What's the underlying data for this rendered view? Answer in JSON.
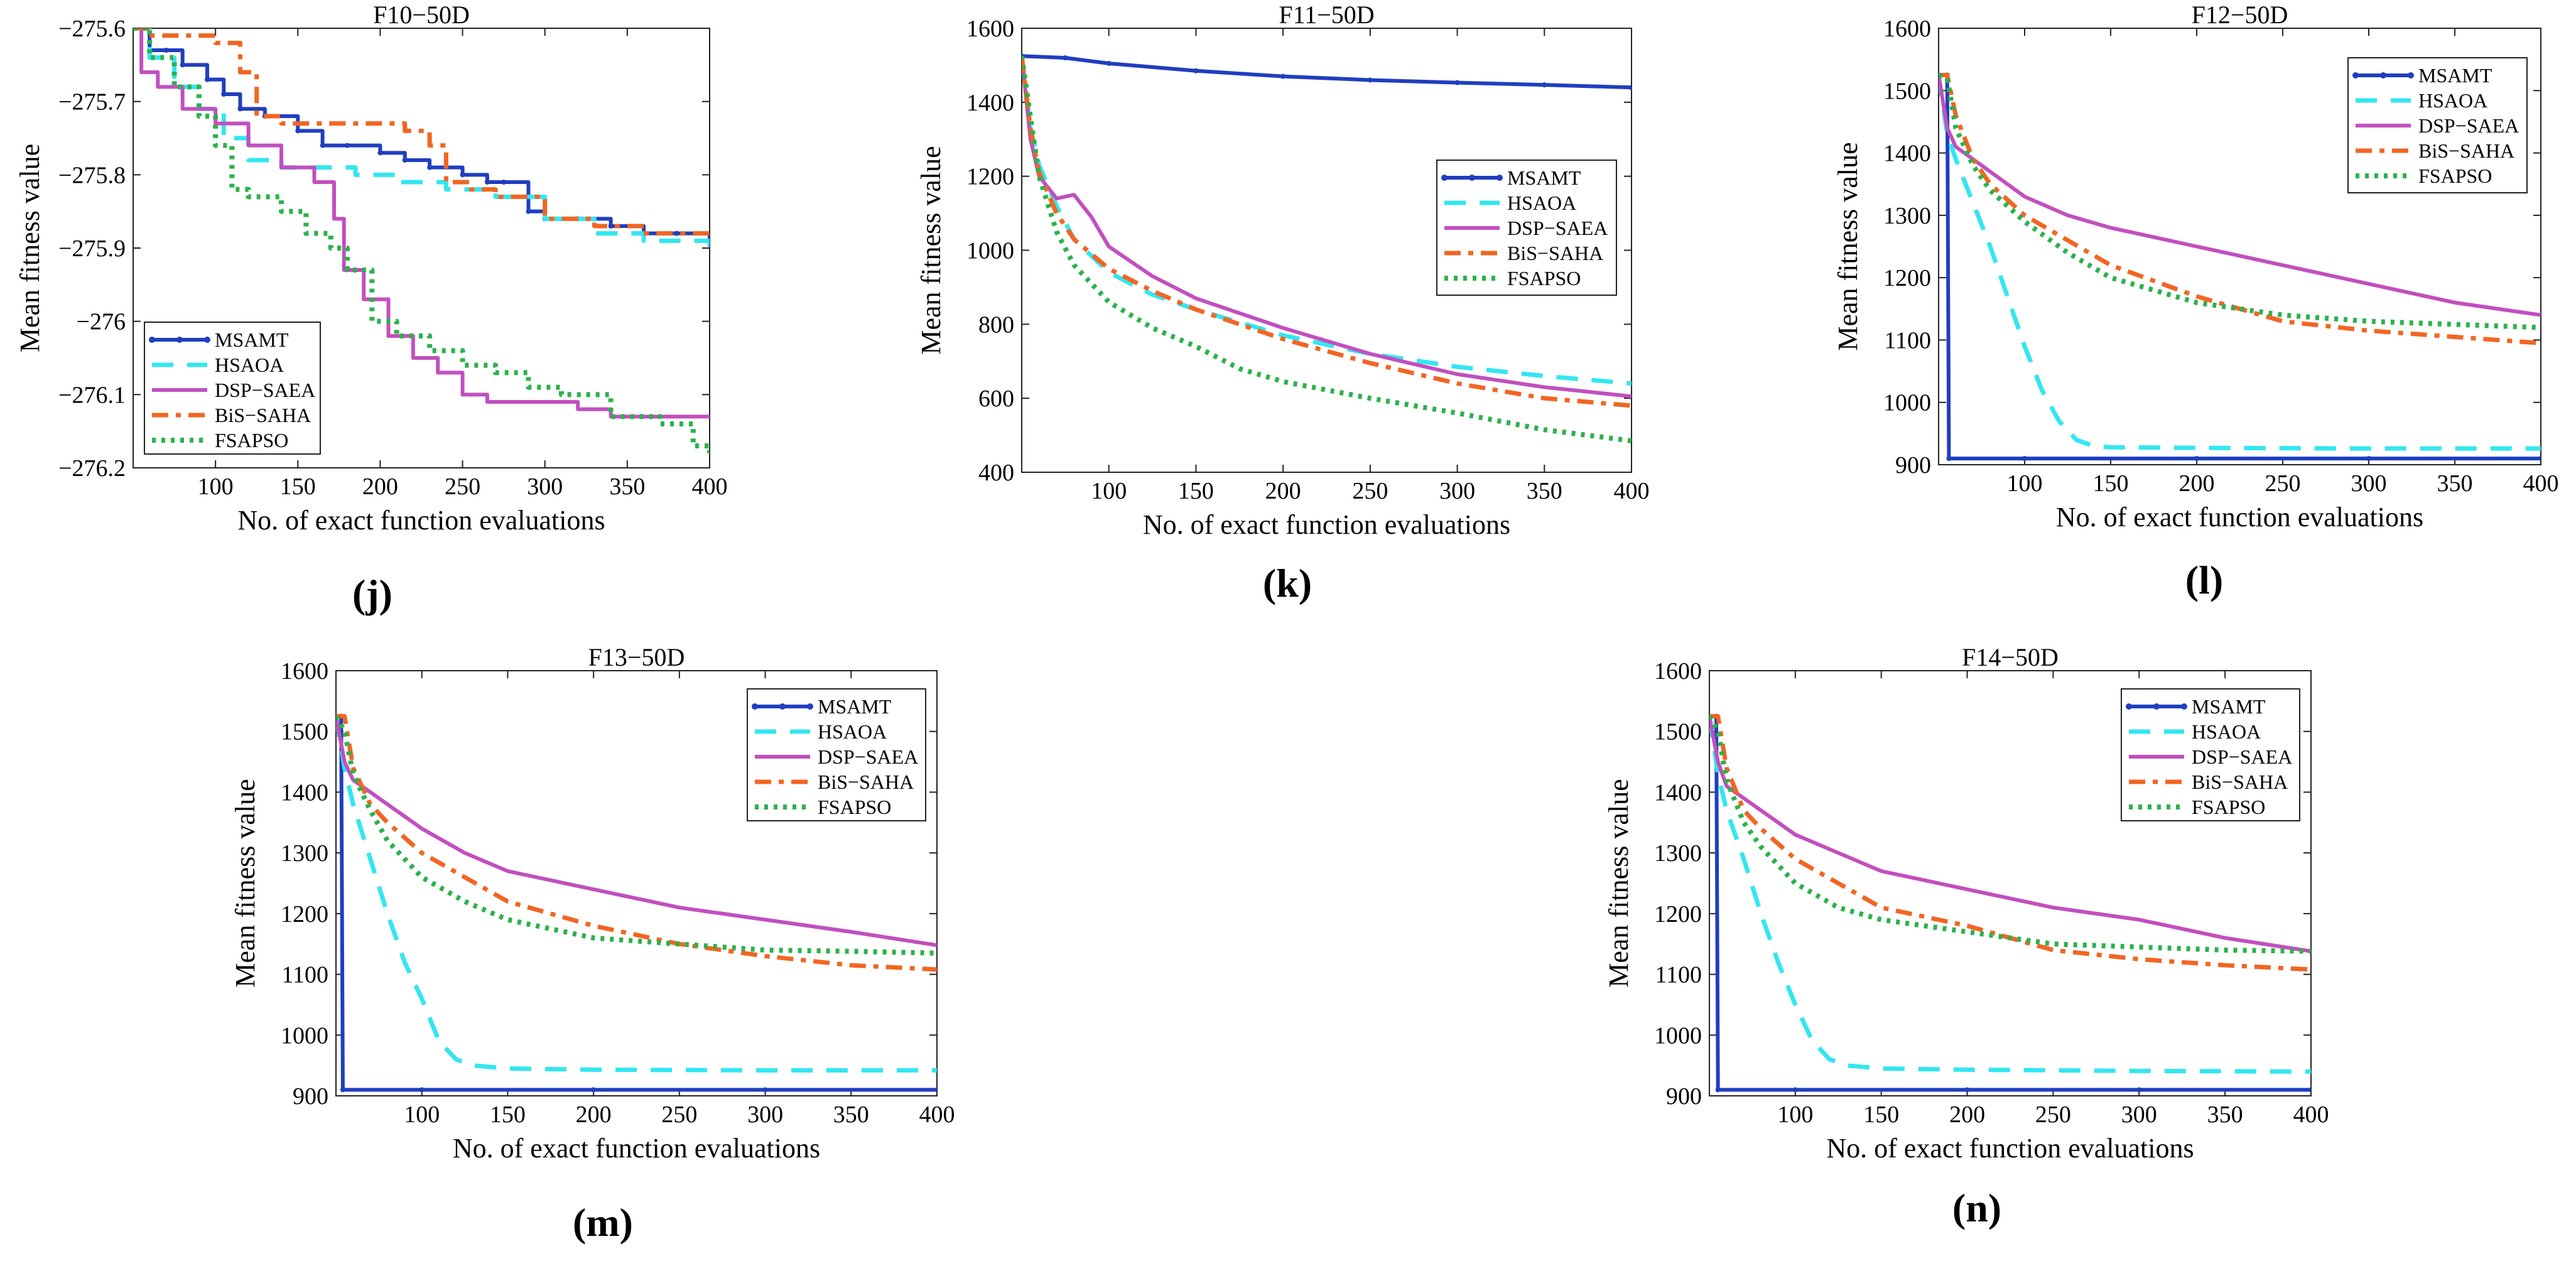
{
  "series_styles": {
    "MSAMT": {
      "color": "#1f3fbf",
      "dash": "",
      "width": 6,
      "marker": true
    },
    "HSAOA": {
      "color": "#33e6f0",
      "dash": "34,22",
      "width": 7,
      "marker": false
    },
    "DSP-SAEA": {
      "color": "#c24fbf",
      "dash": "",
      "width": 6,
      "marker": false
    },
    "BiS-SAHA": {
      "color": "#f26522",
      "dash": "26,12,8,12",
      "width": 7,
      "marker": false
    },
    "FSAPSO": {
      "color": "#2bb24c",
      "dash": "6,9",
      "width": 8,
      "marker": false
    }
  },
  "chart_data": [
    {
      "type": "line",
      "panel": "(j)",
      "title": "F10−50D",
      "xlabel": "No. of exact function evaluations",
      "ylabel": "Mean fitness value",
      "xlim": [
        50,
        400
      ],
      "ylim": [
        -276.2,
        -275.6
      ],
      "xticks": [
        100,
        150,
        200,
        250,
        300,
        350,
        400
      ],
      "yticks": [
        -275.6,
        -275.7,
        -275.8,
        -275.9,
        -276,
        -276.1,
        -276.2
      ],
      "ytick_labels": [
        "−275.6",
        "−275.7",
        "−275.8",
        "−275.9",
        "−276",
        "−276.1",
        "−276.2"
      ],
      "legend": "bottom-left",
      "series": [
        {
          "name": "MSAMT",
          "step": true,
          "x": [
            50,
            60,
            70,
            80,
            95,
            105,
            115,
            130,
            150,
            165,
            180,
            200,
            215,
            230,
            250,
            265,
            275,
            290,
            300,
            320,
            340,
            360,
            380,
            400
          ],
          "y": [
            -275.6,
            -275.63,
            -275.63,
            -275.65,
            -275.67,
            -275.69,
            -275.71,
            -275.72,
            -275.74,
            -275.76,
            -275.76,
            -275.77,
            -275.78,
            -275.79,
            -275.8,
            -275.81,
            -275.81,
            -275.85,
            -275.86,
            -275.86,
            -275.87,
            -275.88,
            -275.88,
            -275.89
          ]
        },
        {
          "name": "HSAOA",
          "step": true,
          "x": [
            50,
            60,
            75,
            90,
            105,
            120,
            140,
            160,
            185,
            210,
            240,
            270,
            300,
            330,
            360,
            390,
            400
          ],
          "y": [
            -275.6,
            -275.64,
            -275.68,
            -275.71,
            -275.75,
            -275.78,
            -275.79,
            -275.79,
            -275.8,
            -275.81,
            -275.82,
            -275.83,
            -275.86,
            -275.88,
            -275.89,
            -275.89,
            -275.91
          ]
        },
        {
          "name": "DSP-SAEA",
          "step": true,
          "x": [
            50,
            55,
            65,
            80,
            100,
            120,
            140,
            160,
            172,
            178,
            190,
            205,
            220,
            235,
            250,
            265,
            290,
            320,
            340,
            370,
            400
          ],
          "y": [
            -275.6,
            -275.66,
            -275.68,
            -275.71,
            -275.73,
            -275.76,
            -275.79,
            -275.81,
            -275.86,
            -275.93,
            -275.97,
            -276.02,
            -276.05,
            -276.07,
            -276.1,
            -276.11,
            -276.11,
            -276.12,
            -276.13,
            -276.13,
            -276.13
          ]
        },
        {
          "name": "BiS-SAHA",
          "step": true,
          "x": [
            50,
            60,
            80,
            100,
            115,
            125,
            140,
            180,
            200,
            215,
            230,
            240,
            255,
            270,
            300,
            330,
            360,
            400
          ],
          "y": [
            -275.6,
            -275.61,
            -275.61,
            -275.62,
            -275.66,
            -275.72,
            -275.73,
            -275.73,
            -275.73,
            -275.74,
            -275.76,
            -275.81,
            -275.82,
            -275.83,
            -275.86,
            -275.87,
            -275.88,
            -275.88
          ]
        },
        {
          "name": "FSAPSO",
          "step": true,
          "x": [
            50,
            60,
            75,
            90,
            100,
            110,
            120,
            140,
            155,
            170,
            180,
            195,
            210,
            230,
            250,
            270,
            290,
            310,
            340,
            370,
            390,
            400
          ],
          "y": [
            -275.6,
            -275.64,
            -275.68,
            -275.72,
            -275.76,
            -275.82,
            -275.83,
            -275.85,
            -275.88,
            -275.9,
            -275.93,
            -276.0,
            -276.02,
            -276.04,
            -276.06,
            -276.07,
            -276.09,
            -276.1,
            -276.13,
            -276.14,
            -276.17,
            -276.18
          ]
        }
      ]
    },
    {
      "type": "line",
      "panel": "(k)",
      "title": "F11−50D",
      "xlabel": "No. of exact function evaluations",
      "ylabel": "Mean fitness value",
      "xlim": [
        50,
        400
      ],
      "ylim": [
        400,
        1600
      ],
      "xticks": [
        100,
        150,
        200,
        250,
        300,
        350,
        400
      ],
      "yticks": [
        400,
        600,
        800,
        1000,
        1200,
        1400,
        1600
      ],
      "legend": "right-middle",
      "series": [
        {
          "name": "MSAMT",
          "x": [
            50,
            75,
            100,
            150,
            200,
            250,
            300,
            350,
            400
          ],
          "y": [
            1525,
            1520,
            1505,
            1485,
            1470,
            1460,
            1453,
            1447,
            1440
          ]
        },
        {
          "name": "HSAOA",
          "x": [
            50,
            55,
            60,
            70,
            80,
            100,
            125,
            150,
            200,
            250,
            300,
            350,
            400
          ],
          "y": [
            1525,
            1330,
            1230,
            1120,
            1030,
            940,
            880,
            840,
            770,
            720,
            685,
            660,
            640
          ]
        },
        {
          "name": "DSP-SAEA",
          "x": [
            50,
            55,
            60,
            70,
            80,
            90,
            100,
            125,
            150,
            200,
            250,
            300,
            350,
            400
          ],
          "y": [
            1525,
            1300,
            1200,
            1140,
            1150,
            1090,
            1010,
            930,
            870,
            790,
            720,
            665,
            630,
            605
          ]
        },
        {
          "name": "BiS-SAHA",
          "x": [
            50,
            55,
            60,
            70,
            80,
            100,
            125,
            150,
            200,
            250,
            300,
            350,
            400
          ],
          "y": [
            1525,
            1330,
            1210,
            1100,
            1030,
            950,
            890,
            840,
            760,
            695,
            640,
            600,
            580
          ]
        },
        {
          "name": "FSAPSO",
          "x": [
            50,
            55,
            60,
            70,
            80,
            100,
            125,
            150,
            175,
            200,
            250,
            300,
            350,
            400
          ],
          "y": [
            1525,
            1360,
            1200,
            1050,
            960,
            860,
            790,
            740,
            680,
            645,
            600,
            560,
            515,
            485
          ]
        }
      ]
    },
    {
      "type": "line",
      "panel": "(l)",
      "title": "F12−50D",
      "xlabel": "No. of exact function evaluations",
      "ylabel": "Mean fitness value",
      "xlim": [
        50,
        400
      ],
      "ylim": [
        900,
        1600
      ],
      "xticks": [
        100,
        150,
        200,
        250,
        300,
        350,
        400
      ],
      "yticks": [
        900,
        1000,
        1100,
        1200,
        1300,
        1400,
        1500,
        1600
      ],
      "legend": "top-right",
      "series": [
        {
          "name": "MSAMT",
          "x": [
            50,
            55,
            56,
            100,
            200,
            300,
            400
          ],
          "y": [
            1525,
            1525,
            910,
            910,
            910,
            910,
            910
          ]
        },
        {
          "name": "HSAOA",
          "x": [
            50,
            55,
            60,
            70,
            80,
            90,
            100,
            110,
            120,
            130,
            140,
            150,
            200,
            300,
            400
          ],
          "y": [
            1525,
            1430,
            1390,
            1320,
            1250,
            1170,
            1090,
            1020,
            970,
            940,
            930,
            928,
            927,
            926,
            926
          ]
        },
        {
          "name": "DSP-SAEA",
          "x": [
            50,
            55,
            60,
            70,
            80,
            100,
            125,
            150,
            200,
            250,
            300,
            350,
            400
          ],
          "y": [
            1525,
            1440,
            1410,
            1390,
            1370,
            1330,
            1300,
            1280,
            1250,
            1220,
            1190,
            1160,
            1140
          ]
        },
        {
          "name": "BiS-SAHA",
          "x": [
            50,
            55,
            60,
            70,
            80,
            100,
            125,
            150,
            200,
            250,
            300,
            350,
            400
          ],
          "y": [
            1525,
            1525,
            1460,
            1390,
            1350,
            1300,
            1260,
            1220,
            1170,
            1130,
            1115,
            1105,
            1095
          ]
        },
        {
          "name": "FSAPSO",
          "x": [
            50,
            55,
            60,
            70,
            80,
            100,
            125,
            150,
            200,
            250,
            300,
            350,
            400
          ],
          "y": [
            1525,
            1520,
            1440,
            1380,
            1340,
            1290,
            1240,
            1200,
            1160,
            1140,
            1130,
            1125,
            1120
          ]
        }
      ]
    },
    {
      "type": "line",
      "panel": "(m)",
      "title": "F13−50D",
      "xlabel": "No. of exact function evaluations",
      "ylabel": "Mean fitness value",
      "xlim": [
        50,
        400
      ],
      "ylim": [
        900,
        1600
      ],
      "xticks": [
        100,
        150,
        200,
        250,
        300,
        350,
        400
      ],
      "yticks": [
        900,
        1000,
        1100,
        1200,
        1300,
        1400,
        1500,
        1600
      ],
      "legend": "top-right",
      "series": [
        {
          "name": "MSAMT",
          "x": [
            50,
            53,
            54,
            100,
            200,
            300,
            400
          ],
          "y": [
            1525,
            1525,
            910,
            910,
            910,
            910,
            910
          ]
        },
        {
          "name": "HSAOA",
          "x": [
            50,
            55,
            60,
            70,
            80,
            90,
            100,
            110,
            120,
            130,
            150,
            200,
            300,
            400
          ],
          "y": [
            1525,
            1440,
            1380,
            1290,
            1200,
            1120,
            1060,
            990,
            960,
            950,
            945,
            943,
            942,
            942
          ]
        },
        {
          "name": "DSP-SAEA",
          "x": [
            50,
            55,
            60,
            70,
            80,
            100,
            125,
            150,
            200,
            250,
            300,
            350,
            400
          ],
          "y": [
            1525,
            1450,
            1420,
            1400,
            1380,
            1340,
            1300,
            1270,
            1240,
            1210,
            1190,
            1170,
            1148
          ]
        },
        {
          "name": "BiS-SAHA",
          "x": [
            50,
            55,
            60,
            70,
            80,
            100,
            125,
            150,
            200,
            250,
            300,
            350,
            400
          ],
          "y": [
            1525,
            1525,
            1440,
            1380,
            1350,
            1300,
            1260,
            1220,
            1180,
            1150,
            1130,
            1115,
            1108
          ]
        },
        {
          "name": "FSAPSO",
          "x": [
            50,
            55,
            60,
            70,
            80,
            100,
            125,
            150,
            200,
            250,
            300,
            350,
            400
          ],
          "y": [
            1525,
            1500,
            1430,
            1370,
            1320,
            1260,
            1220,
            1190,
            1160,
            1150,
            1140,
            1138,
            1135
          ]
        }
      ]
    },
    {
      "type": "line",
      "panel": "(n)",
      "title": "F14−50D",
      "xlabel": "No. of exact function evaluations",
      "ylabel": "Mean fitness value",
      "xlim": [
        50,
        400
      ],
      "ylim": [
        900,
        1600
      ],
      "xticks": [
        100,
        150,
        200,
        250,
        300,
        350,
        400
      ],
      "yticks": [
        900,
        1000,
        1100,
        1200,
        1300,
        1400,
        1500,
        1600
      ],
      "legend": "top-right",
      "series": [
        {
          "name": "MSAMT",
          "x": [
            50,
            54,
            55,
            100,
            200,
            300,
            400
          ],
          "y": [
            1525,
            1525,
            910,
            910,
            910,
            910,
            910
          ]
        },
        {
          "name": "HSAOA",
          "x": [
            50,
            55,
            60,
            70,
            80,
            90,
            100,
            110,
            120,
            130,
            150,
            200,
            300,
            400
          ],
          "y": [
            1525,
            1430,
            1370,
            1290,
            1200,
            1120,
            1050,
            990,
            960,
            950,
            945,
            943,
            941,
            940
          ]
        },
        {
          "name": "DSP-SAEA",
          "x": [
            50,
            55,
            60,
            70,
            80,
            100,
            125,
            150,
            200,
            250,
            300,
            350,
            400
          ],
          "y": [
            1525,
            1450,
            1410,
            1390,
            1370,
            1330,
            1300,
            1270,
            1240,
            1210,
            1190,
            1160,
            1138
          ]
        },
        {
          "name": "BiS-SAHA",
          "x": [
            50,
            55,
            60,
            70,
            80,
            100,
            125,
            150,
            200,
            250,
            300,
            350,
            400
          ],
          "y": [
            1525,
            1525,
            1440,
            1370,
            1340,
            1290,
            1250,
            1210,
            1180,
            1140,
            1125,
            1115,
            1108
          ]
        },
        {
          "name": "FSAPSO",
          "x": [
            50,
            55,
            60,
            70,
            80,
            100,
            125,
            150,
            200,
            250,
            300,
            350,
            400
          ],
          "y": [
            1525,
            1500,
            1420,
            1350,
            1310,
            1250,
            1210,
            1190,
            1170,
            1150,
            1145,
            1140,
            1138
          ]
        }
      ]
    }
  ]
}
